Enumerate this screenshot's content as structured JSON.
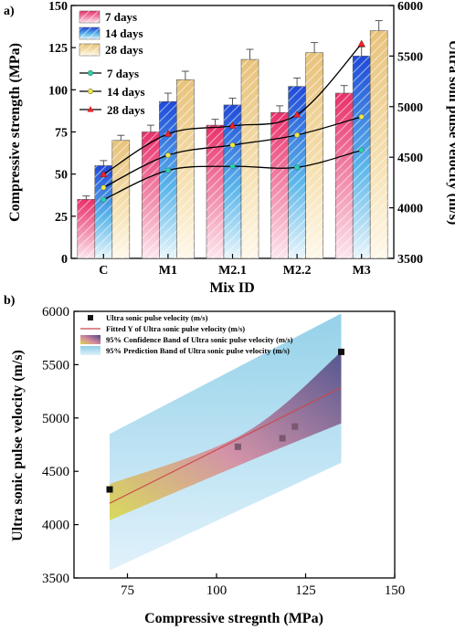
{
  "chart_data": [
    {
      "panel": "a)",
      "type": "bar",
      "categories": [
        "C",
        "M1",
        "M2.1",
        "M2.2",
        "M3"
      ],
      "xlabel": "Mix ID",
      "ylabel": "Compressive strength (MPa)",
      "ylabel_right": "Ultra soni pulse velocity (m/s)",
      "ylim": [
        0,
        150
      ],
      "yticks": [
        0,
        25,
        50,
        75,
        100,
        125,
        150
      ],
      "ylim_right": [
        3500,
        6000
      ],
      "yticks_right": [
        3500,
        4000,
        4500,
        5000,
        5500,
        6000
      ],
      "legend_position": "top-left",
      "series": [
        {
          "name": "7 days",
          "kind": "bar",
          "color": "#e8306a",
          "values": [
            35,
            75,
            79,
            86.5,
            98
          ],
          "errors": [
            2,
            4,
            3.5,
            4,
            4.5
          ]
        },
        {
          "name": "14 days",
          "kind": "bar",
          "color": "#1f49d8",
          "values": [
            55,
            93,
            91,
            102,
            120
          ],
          "errors": [
            3,
            5,
            4,
            5,
            5.5
          ]
        },
        {
          "name": "28 days",
          "kind": "bar",
          "color": "#e8c27a",
          "values": [
            70,
            106,
            118,
            122,
            135
          ],
          "errors": [
            3,
            5,
            6,
            6,
            6
          ]
        },
        {
          "name": "7 days",
          "kind": "line",
          "axis": "right",
          "color": "#22d3b0",
          "values": [
            4080,
            4370,
            4410,
            4400,
            4570
          ]
        },
        {
          "name": "14 days",
          "kind": "line",
          "axis": "right",
          "color": "#eaea40",
          "values": [
            4200,
            4520,
            4620,
            4720,
            4900
          ]
        },
        {
          "name": "28 days",
          "kind": "line",
          "axis": "right",
          "color": "#e8252b",
          "values": [
            4330,
            4730,
            4810,
            4920,
            5620
          ]
        }
      ]
    },
    {
      "panel": "b)",
      "type": "scatter",
      "xlabel": "Compressive stregnth (MPa)",
      "ylabel": "Ultra sonic pulse velocity (m/s)",
      "xlim": [
        60,
        150
      ],
      "xticks": [
        75,
        100,
        125,
        150
      ],
      "ylim": [
        3500,
        6000
      ],
      "yticks": [
        3500,
        4000,
        4500,
        5000,
        5500,
        6000
      ],
      "legend_position": "top-left",
      "points": {
        "name": "Ultra sonic pulse velocity (m/s)",
        "x": [
          70,
          106,
          118.5,
          122,
          135
        ],
        "y": [
          4330,
          4730,
          4810,
          4920,
          5620
        ]
      },
      "fit": {
        "name": "Fitted Y of Ultra sonic pulse velocity (m/s)",
        "x": [
          70,
          135
        ],
        "y": [
          4200,
          5285
        ]
      },
      "confidence_band": {
        "name": "95% Confidence Band of Ultra sonic pulse velocity (m/s)",
        "x": [
          70,
          108,
          135
        ],
        "upper": [
          4380,
          4860,
          5620
        ],
        "lower": [
          4040,
          4580,
          4950
        ]
      },
      "prediction_band": {
        "name": "95% Prediction Band of Ultra sonic pulse velocity (m/s)",
        "x": [
          70,
          135
        ],
        "upper": [
          4850,
          5980
        ],
        "lower": [
          3570,
          4580
        ]
      }
    }
  ]
}
